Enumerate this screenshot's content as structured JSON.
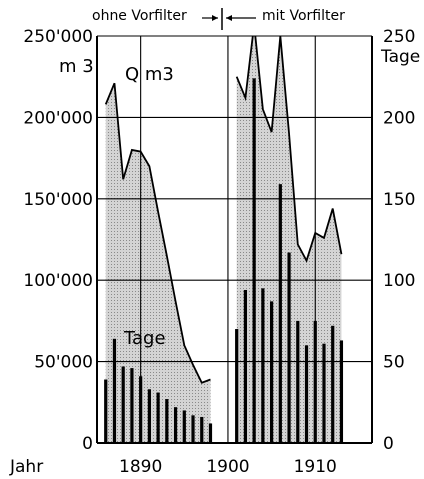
{
  "chart_data": {
    "type": "bar",
    "header_left": "ohne Vorfilter",
    "header_right": "mit Vorfilter",
    "left_axis_unit": "m 3",
    "right_axis_unit": "Tage",
    "area_series_label": "Q m3",
    "bar_series_label": "Tage",
    "x_axis_label": "Jahr",
    "x_ticks": [
      "1890",
      "1900",
      "1910"
    ],
    "left_ticks": [
      "0",
      "50'000",
      "100'000",
      "150'000",
      "200'000",
      "250'000"
    ],
    "right_ticks": [
      "0",
      "50",
      "100",
      "150",
      "200",
      "250"
    ],
    "xlim": [
      1885,
      1916.5
    ],
    "ylim_left": [
      0,
      250000
    ],
    "ylim_right": [
      0,
      250
    ],
    "grid": true,
    "area_segments": [
      {
        "name": "Q m3",
        "x": [
          1886,
          1887,
          1888,
          1889,
          1890,
          1891,
          1892,
          1893,
          1894,
          1895,
          1896,
          1897,
          1898
        ],
        "values": [
          208000,
          221000,
          162000,
          180000,
          179000,
          170000,
          142000,
          115000,
          87000,
          60000,
          48000,
          37000,
          39000
        ]
      },
      {
        "name": "Q m3",
        "x": [
          1901,
          1902,
          1903,
          1904,
          1905,
          1906,
          1907,
          1908,
          1909,
          1910,
          1911,
          1912,
          1913
        ],
        "values": [
          225000,
          212000,
          257000,
          205000,
          191000,
          250000,
          190000,
          122000,
          112000,
          129000,
          126000,
          144000,
          116000
        ]
      }
    ],
    "bars": {
      "name": "Tage",
      "x": [
        1886,
        1887,
        1888,
        1889,
        1890,
        1891,
        1892,
        1893,
        1894,
        1895,
        1896,
        1897,
        1898,
        1901,
        1902,
        1903,
        1904,
        1905,
        1906,
        1907,
        1908,
        1909,
        1910,
        1911,
        1912,
        1913
      ],
      "values": [
        39,
        64,
        47,
        46,
        41,
        33,
        31,
        27,
        22,
        20,
        17,
        16,
        12,
        70,
        94,
        224,
        95,
        87,
        159,
        117,
        75,
        60,
        75,
        61,
        72,
        63
      ]
    }
  }
}
